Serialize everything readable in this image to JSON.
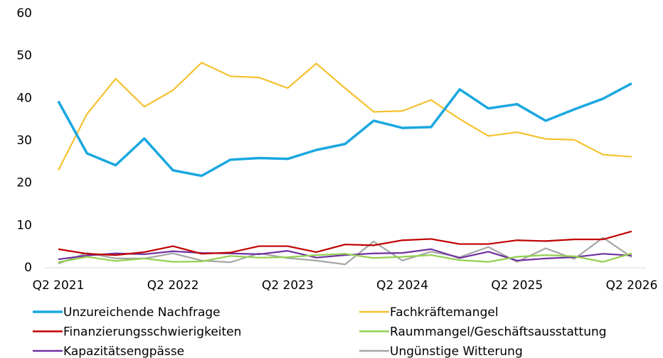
{
  "chart_data": {
    "type": "line",
    "categories": [
      "Q2 2021",
      null,
      null,
      null,
      "Q2 2022",
      null,
      null,
      null,
      "Q2 2023",
      null,
      null,
      null,
      "Q2 2024",
      null,
      null,
      null,
      "Q2 2025",
      null,
      null,
      null,
      "Q2 2026"
    ],
    "series": [
      {
        "name": "Unzureichende Nachfrage",
        "color": "#1aa7e0",
        "values": [
          39.3,
          27,
          24.2,
          30.5,
          23,
          21.7,
          25.5,
          25.9,
          25.7,
          27.8,
          29.2,
          34.7,
          33,
          33.2,
          42.1,
          37.6,
          38.6,
          34.7,
          37.4,
          39.9,
          43.5
        ]
      },
      {
        "name": "Fachkräftemangel",
        "color": "#f5c12e",
        "values": [
          23,
          36.3,
          44.6,
          38,
          41.9,
          48.4,
          45.2,
          44.9,
          42.4,
          48.2,
          42.4,
          36.8,
          37,
          39.6,
          35.1,
          31.1,
          32,
          30.4,
          30.2,
          26.7,
          26.2
        ]
      },
      {
        "name": "Finanzierungsschwierigkeiten",
        "color": "#c00000",
        "values": [
          4.4,
          3.3,
          3.0,
          3.7,
          5.1,
          3.3,
          3.6,
          5.1,
          5.1,
          3.7,
          5.5,
          5.3,
          6.5,
          6.8,
          5.6,
          5.6,
          6.5,
          6.3,
          6.7,
          6.7,
          8.6
        ]
      },
      {
        "name": "Raummangel/Geschäftsausstattung",
        "color": "#92d050",
        "values": [
          1.3,
          2.6,
          1.6,
          2.2,
          1.4,
          1.5,
          2.8,
          2.4,
          2.5,
          3.0,
          3.3,
          2.3,
          2.6,
          3.0,
          1.8,
          1.4,
          2.6,
          3.0,
          2.7,
          1.4,
          3.4
        ]
      },
      {
        "name": "Kapazitätsengpässe",
        "color": "#7030a0",
        "values": [
          2.0,
          2.9,
          3.4,
          3.2,
          3.9,
          3.5,
          3.4,
          3.2,
          4.0,
          2.4,
          3.0,
          3.4,
          3.5,
          4.4,
          2.3,
          3.8,
          1.7,
          2.2,
          2.5,
          3.3,
          2.9
        ]
      },
      {
        "name": "Ungünstige Witterung",
        "color": "#a6a6a6",
        "values": [
          1.0,
          3.5,
          2.2,
          2.2,
          3.4,
          1.7,
          1.3,
          3.4,
          2.3,
          1.7,
          0.8,
          6.2,
          1.7,
          3.8,
          2.5,
          4.9,
          1.4,
          4.6,
          2.1,
          7.1,
          2.5
        ]
      }
    ],
    "ylim": [
      0,
      60
    ],
    "yticks": [
      0,
      10,
      20,
      30,
      40,
      50,
      60
    ],
    "grid": false
  }
}
